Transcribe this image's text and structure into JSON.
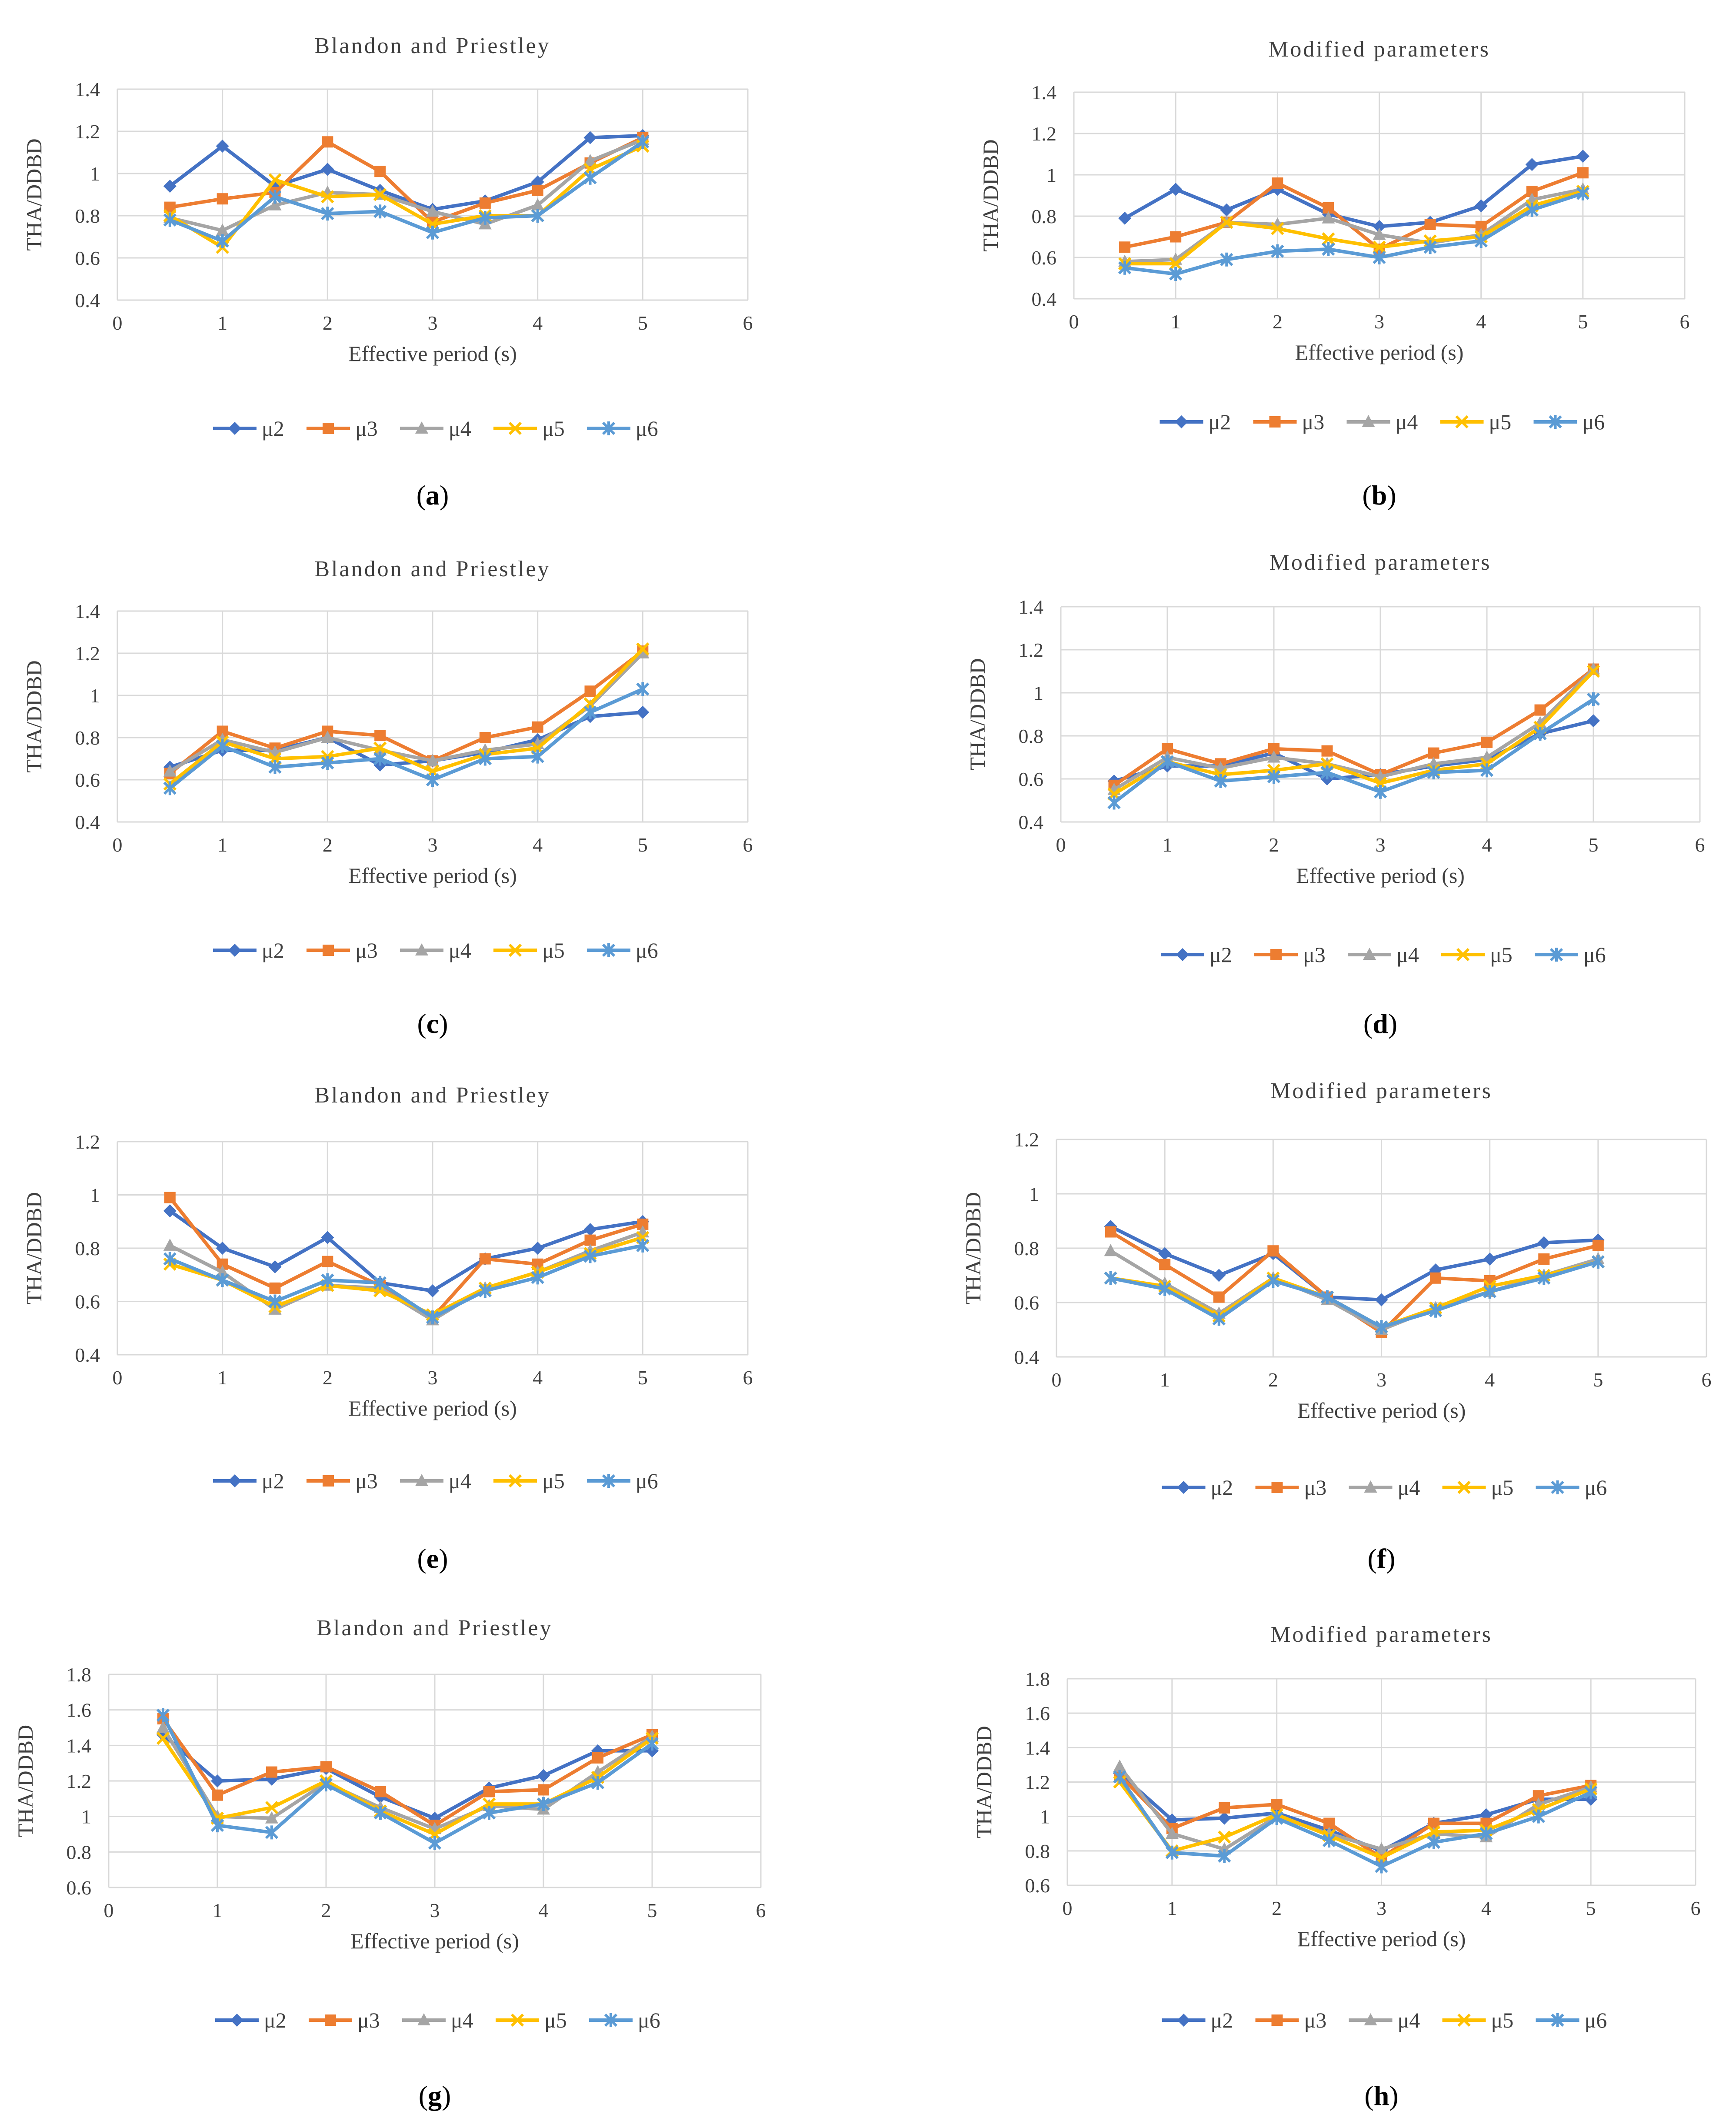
{
  "series_names": [
    "μ2",
    "μ3",
    "μ4",
    "μ5",
    "μ6"
  ],
  "series_colors": [
    "#4472C4",
    "#ED7D31",
    "#A5A5A5",
    "#FFC000",
    "#5B9BD5"
  ],
  "series_markers": [
    "diamond",
    "square",
    "triangle",
    "x",
    "asterisk"
  ],
  "chart_data": [
    {
      "type": "line",
      "panel": "a",
      "title": "Blandon and Priestley",
      "xlabel": "Effective period (s)",
      "ylabel": "THA/DDBD",
      "xlim": [
        0,
        6
      ],
      "ylim": [
        0.4,
        1.4
      ],
      "xticks": [
        "0",
        "1",
        "2",
        "3",
        "4",
        "5",
        "6"
      ],
      "yticks": [
        "0.4",
        "0.6",
        "0.8",
        "1",
        "1.2",
        "1.4"
      ],
      "x": [
        0.5,
        1,
        1.5,
        2,
        2.5,
        3,
        3.5,
        4,
        4.5,
        5
      ],
      "series": [
        {
          "name": "μ2",
          "values": [
            0.94,
            1.13,
            0.94,
            1.02,
            0.92,
            0.83,
            0.87,
            0.96,
            1.17,
            1.18
          ]
        },
        {
          "name": "μ3",
          "values": [
            0.84,
            0.88,
            0.91,
            1.15,
            1.01,
            0.77,
            0.86,
            0.92,
            1.05,
            1.17
          ]
        },
        {
          "name": "μ4",
          "values": [
            0.79,
            0.73,
            0.85,
            0.91,
            0.9,
            0.82,
            0.76,
            0.85,
            1.06,
            1.16
          ]
        },
        {
          "name": "μ5",
          "values": [
            0.8,
            0.65,
            0.97,
            0.89,
            0.9,
            0.76,
            0.8,
            0.8,
            1.02,
            1.13
          ]
        },
        {
          "name": "μ6",
          "values": [
            0.78,
            0.68,
            0.89,
            0.81,
            0.82,
            0.72,
            0.79,
            0.8,
            0.98,
            1.15
          ]
        }
      ],
      "label": "a"
    },
    {
      "type": "line",
      "panel": "b",
      "title": "Modified parameters",
      "xlabel": "Effective period (s)",
      "ylabel": "THA/DDBD",
      "xlim": [
        0,
        6
      ],
      "ylim": [
        0.4,
        1.4
      ],
      "xticks": [
        "0",
        "1",
        "2",
        "3",
        "4",
        "5",
        "6"
      ],
      "yticks": [
        "0.4",
        "0.6",
        "0.8",
        "1",
        "1.2",
        "1.4"
      ],
      "x": [
        0.5,
        1,
        1.5,
        2,
        2.5,
        3,
        3.5,
        4,
        4.5,
        5
      ],
      "series": [
        {
          "name": "μ2",
          "values": [
            0.79,
            0.93,
            0.83,
            0.93,
            0.81,
            0.75,
            0.77,
            0.85,
            1.05,
            1.09
          ]
        },
        {
          "name": "μ3",
          "values": [
            0.65,
            0.7,
            0.77,
            0.96,
            0.84,
            0.64,
            0.76,
            0.75,
            0.92,
            1.01
          ]
        },
        {
          "name": "μ4",
          "values": [
            0.58,
            0.59,
            0.77,
            0.76,
            0.79,
            0.71,
            0.67,
            0.71,
            0.88,
            0.93
          ]
        },
        {
          "name": "μ5",
          "values": [
            0.57,
            0.57,
            0.77,
            0.74,
            0.69,
            0.65,
            0.68,
            0.7,
            0.85,
            0.92
          ]
        },
        {
          "name": "μ6",
          "values": [
            0.55,
            0.52,
            0.59,
            0.63,
            0.64,
            0.6,
            0.65,
            0.68,
            0.83,
            0.91
          ]
        }
      ],
      "label": "b"
    },
    {
      "type": "line",
      "panel": "c",
      "title": "Blandon and Priestley",
      "xlabel": "Effective period (s)",
      "ylabel": "THA/DDBD",
      "xlim": [
        0,
        6
      ],
      "ylim": [
        0.4,
        1.4
      ],
      "xticks": [
        "0",
        "1",
        "2",
        "3",
        "4",
        "5",
        "6"
      ],
      "yticks": [
        "0.4",
        "0.6",
        "0.8",
        "1",
        "1.2",
        "1.4"
      ],
      "x": [
        0.5,
        1,
        1.5,
        2,
        2.5,
        3,
        3.5,
        4,
        4.5,
        5
      ],
      "series": [
        {
          "name": "μ2",
          "values": [
            0.66,
            0.74,
            0.74,
            0.8,
            0.67,
            0.69,
            0.73,
            0.79,
            0.9,
            0.92
          ]
        },
        {
          "name": "μ3",
          "values": [
            0.63,
            0.83,
            0.75,
            0.83,
            0.81,
            0.69,
            0.8,
            0.85,
            1.02,
            1.21
          ]
        },
        {
          "name": "μ4",
          "values": [
            0.64,
            0.79,
            0.73,
            0.8,
            0.74,
            0.69,
            0.74,
            0.77,
            0.95,
            1.2
          ]
        },
        {
          "name": "μ5",
          "values": [
            0.58,
            0.78,
            0.7,
            0.71,
            0.75,
            0.64,
            0.72,
            0.75,
            0.96,
            1.22
          ]
        },
        {
          "name": "μ6",
          "values": [
            0.56,
            0.76,
            0.66,
            0.68,
            0.7,
            0.6,
            0.7,
            0.71,
            0.92,
            1.03
          ]
        }
      ],
      "label": "c"
    },
    {
      "type": "line",
      "panel": "d",
      "title": "Modified parameters",
      "xlabel": "Effective period (s)",
      "ylabel": "THA/DDBD",
      "xlim": [
        0,
        6
      ],
      "ylim": [
        0.4,
        1.4
      ],
      "xticks": [
        "0",
        "1",
        "2",
        "3",
        "4",
        "5",
        "6"
      ],
      "yticks": [
        "0.4",
        "0.6",
        "0.8",
        "1",
        "1.2",
        "1.4"
      ],
      "x": [
        0.5,
        1,
        1.5,
        2,
        2.5,
        3,
        3.5,
        4,
        4.5,
        5
      ],
      "series": [
        {
          "name": "μ2",
          "values": [
            0.59,
            0.66,
            0.66,
            0.72,
            0.6,
            0.62,
            0.66,
            0.69,
            0.81,
            0.87
          ]
        },
        {
          "name": "μ3",
          "values": [
            0.57,
            0.74,
            0.67,
            0.74,
            0.73,
            0.62,
            0.72,
            0.77,
            0.92,
            1.11
          ]
        },
        {
          "name": "μ4",
          "values": [
            0.55,
            0.7,
            0.65,
            0.7,
            0.67,
            0.61,
            0.67,
            0.7,
            0.86,
            1.11
          ]
        },
        {
          "name": "μ5",
          "values": [
            0.53,
            0.68,
            0.62,
            0.64,
            0.67,
            0.58,
            0.64,
            0.67,
            0.84,
            1.1
          ]
        },
        {
          "name": "μ6",
          "values": [
            0.49,
            0.68,
            0.59,
            0.61,
            0.63,
            0.54,
            0.63,
            0.64,
            0.81,
            0.97
          ]
        }
      ],
      "label": "d"
    },
    {
      "type": "line",
      "panel": "e",
      "title": "Blandon and Priestley",
      "xlabel": "Effective period (s)",
      "ylabel": "THA/DDBD",
      "xlim": [
        0,
        6
      ],
      "ylim": [
        0.4,
        1.2
      ],
      "xticks": [
        "0",
        "1",
        "2",
        "3",
        "4",
        "5",
        "6"
      ],
      "yticks": [
        "0.4",
        "0.6",
        "0.8",
        "1",
        "1.2"
      ],
      "x": [
        0.5,
        1,
        1.5,
        2,
        2.5,
        3,
        3.5,
        4,
        4.5,
        5
      ],
      "series": [
        {
          "name": "μ2",
          "values": [
            0.94,
            0.8,
            0.73,
            0.84,
            0.67,
            0.64,
            0.76,
            0.8,
            0.87,
            0.9
          ]
        },
        {
          "name": "μ3",
          "values": [
            0.99,
            0.74,
            0.65,
            0.75,
            0.66,
            0.54,
            0.76,
            0.74,
            0.83,
            0.89
          ]
        },
        {
          "name": "μ4",
          "values": [
            0.81,
            0.71,
            0.57,
            0.66,
            0.65,
            0.53,
            0.65,
            0.71,
            0.79,
            0.86
          ]
        },
        {
          "name": "μ5",
          "values": [
            0.74,
            0.68,
            0.58,
            0.66,
            0.64,
            0.55,
            0.65,
            0.71,
            0.78,
            0.84
          ]
        },
        {
          "name": "μ6",
          "values": [
            0.76,
            0.68,
            0.6,
            0.68,
            0.67,
            0.54,
            0.64,
            0.69,
            0.77,
            0.81
          ]
        }
      ],
      "label": "e"
    },
    {
      "type": "line",
      "panel": "f",
      "title": "Modified parameters",
      "xlabel": "Effective period (s)",
      "ylabel": "THA/DDBD",
      "xlim": [
        0,
        6
      ],
      "ylim": [
        0.4,
        1.2
      ],
      "xticks": [
        "0",
        "1",
        "2",
        "3",
        "4",
        "5",
        "6"
      ],
      "yticks": [
        "0.4",
        "0.6",
        "0.8",
        "1",
        "1.2"
      ],
      "x": [
        0.5,
        1,
        1.5,
        2,
        2.5,
        3,
        3.5,
        4,
        4.5,
        5
      ],
      "series": [
        {
          "name": "μ2",
          "values": [
            0.88,
            0.78,
            0.7,
            0.78,
            0.62,
            0.61,
            0.72,
            0.76,
            0.82,
            0.83
          ]
        },
        {
          "name": "μ3",
          "values": [
            0.86,
            0.74,
            0.62,
            0.79,
            0.62,
            0.49,
            0.69,
            0.68,
            0.76,
            0.81
          ]
        },
        {
          "name": "μ4",
          "values": [
            0.79,
            0.67,
            0.56,
            0.69,
            0.61,
            0.5,
            0.58,
            0.64,
            0.7,
            0.76
          ]
        },
        {
          "name": "μ5",
          "values": [
            0.69,
            0.66,
            0.55,
            0.69,
            0.62,
            0.51,
            0.58,
            0.66,
            0.7,
            0.75
          ]
        },
        {
          "name": "μ6",
          "values": [
            0.69,
            0.65,
            0.54,
            0.68,
            0.62,
            0.51,
            0.57,
            0.64,
            0.69,
            0.75
          ]
        }
      ],
      "label": "f"
    },
    {
      "type": "line",
      "panel": "g",
      "title": "Blandon  and Priestley",
      "xlabel": "Effective period (s)",
      "ylabel": "THA/DDBD",
      "xlim": [
        0,
        6
      ],
      "ylim": [
        0.6,
        1.8
      ],
      "xticks": [
        "0",
        "1",
        "2",
        "3",
        "4",
        "5",
        "6"
      ],
      "yticks": [
        "0.6",
        "0.8",
        "1",
        "1.2",
        "1.4",
        "1.6",
        "1.8"
      ],
      "x": [
        0.5,
        1,
        1.5,
        2,
        2.5,
        3,
        3.5,
        4,
        4.5,
        5
      ],
      "series": [
        {
          "name": "μ2",
          "values": [
            1.46,
            1.2,
            1.21,
            1.27,
            1.11,
            0.99,
            1.16,
            1.23,
            1.37,
            1.37
          ]
        },
        {
          "name": "μ3",
          "values": [
            1.55,
            1.12,
            1.25,
            1.28,
            1.14,
            0.95,
            1.14,
            1.15,
            1.33,
            1.46
          ]
        },
        {
          "name": "μ4",
          "values": [
            1.5,
            1.0,
            0.99,
            1.19,
            1.05,
            0.93,
            1.06,
            1.04,
            1.25,
            1.45
          ]
        },
        {
          "name": "μ5",
          "values": [
            1.44,
            0.99,
            1.05,
            1.2,
            1.03,
            0.9,
            1.07,
            1.07,
            1.22,
            1.44
          ]
        },
        {
          "name": "μ6",
          "values": [
            1.57,
            0.95,
            0.91,
            1.18,
            1.02,
            0.85,
            1.02,
            1.07,
            1.19,
            1.41
          ]
        }
      ],
      "label": "g"
    },
    {
      "type": "line",
      "panel": "h",
      "title": "Modified parameters",
      "xlabel": "Effective period (s)",
      "ylabel": "THA/DDBD",
      "xlim": [
        0,
        6
      ],
      "ylim": [
        0.6,
        1.8
      ],
      "xticks": [
        "0",
        "1",
        "2",
        "3",
        "4",
        "5",
        "6"
      ],
      "yticks": [
        "0.6",
        "0.8",
        "1",
        "1.2",
        "1.4",
        "1.6",
        "1.8"
      ],
      "x": [
        0.5,
        1,
        1.5,
        2,
        2.5,
        3,
        3.5,
        4,
        4.5,
        5
      ],
      "series": [
        {
          "name": "μ2",
          "values": [
            1.25,
            0.98,
            0.99,
            1.02,
            0.92,
            0.8,
            0.96,
            1.01,
            1.1,
            1.1
          ]
        },
        {
          "name": "μ3",
          "values": [
            1.24,
            0.93,
            1.05,
            1.07,
            0.96,
            0.76,
            0.96,
            0.96,
            1.12,
            1.18
          ]
        },
        {
          "name": "μ4",
          "values": [
            1.29,
            0.9,
            0.81,
            1.0,
            0.9,
            0.81,
            0.9,
            0.88,
            1.07,
            1.17
          ]
        },
        {
          "name": "μ5",
          "values": [
            1.2,
            0.8,
            0.88,
            1.01,
            0.89,
            0.76,
            0.91,
            0.92,
            1.04,
            1.16
          ]
        },
        {
          "name": "μ6",
          "values": [
            1.23,
            0.79,
            0.77,
            0.99,
            0.86,
            0.71,
            0.85,
            0.9,
            1.0,
            1.14
          ]
        }
      ],
      "label": "h"
    }
  ]
}
